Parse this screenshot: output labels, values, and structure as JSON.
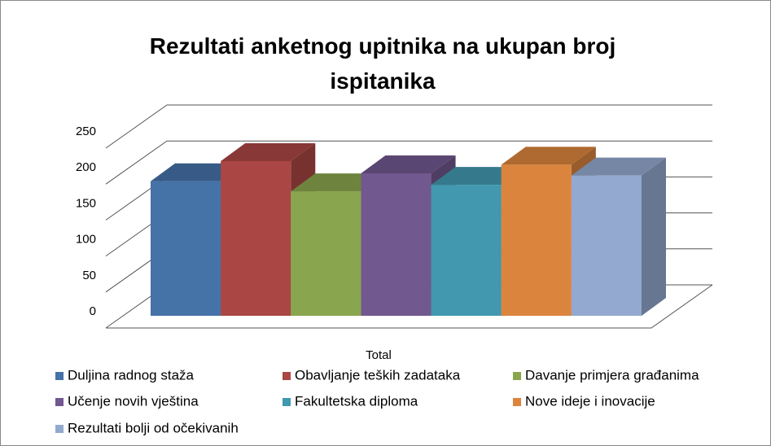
{
  "chart_data": {
    "type": "bar3d",
    "title": "Rezultati anketnog upitnika na ukupan broj ispitanika",
    "categories": [
      "Total"
    ],
    "series": [
      {
        "name": "Duljina radnog staža",
        "color": "#4572a7",
        "values": [
          187
        ]
      },
      {
        "name": "Obavljanje teških zadataka",
        "color": "#aa4643",
        "values": [
          215
        ]
      },
      {
        "name": "Davanje primjera građanima",
        "color": "#89a54e",
        "values": [
          173
        ]
      },
      {
        "name": "Učenje novih vještina",
        "color": "#71588f",
        "values": [
          198
        ]
      },
      {
        "name": "Fakultetska diploma",
        "color": "#4198af",
        "values": [
          182
        ]
      },
      {
        "name": "Nove ideje i inovacije",
        "color": "#db843d",
        "values": [
          210
        ]
      },
      {
        "name": "Rezultati bolji od očekivanih",
        "color": "#93a9cf",
        "values": [
          195
        ]
      }
    ],
    "ylim": [
      0,
      250
    ],
    "yticks": [
      0,
      50,
      100,
      150,
      200,
      250
    ],
    "grid": true,
    "legend": "bottom"
  }
}
